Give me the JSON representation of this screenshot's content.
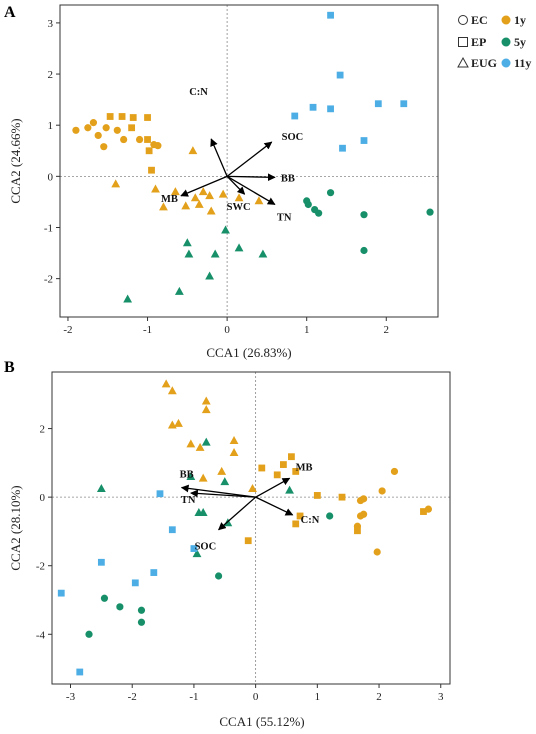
{
  "colors": {
    "1y": "#E3A01A",
    "5y": "#17906A",
    "11y": "#4DAEE5",
    "axis": "#333333",
    "refline": "#888888",
    "arrow": "#000000"
  },
  "legend": {
    "shapes": [
      {
        "label": "EC",
        "shape": "circle"
      },
      {
        "label": "EP",
        "shape": "square"
      },
      {
        "label": "EUG",
        "shape": "triangle"
      }
    ],
    "groups": [
      {
        "label": "1y",
        "color_key": "1y"
      },
      {
        "label": "5y",
        "color_key": "5y"
      },
      {
        "label": "11y",
        "color_key": "11y"
      }
    ]
  },
  "chart_data": [
    {
      "panel": "A",
      "type": "scatter",
      "xlabel": "CCA1 (26.83%)",
      "ylabel": "CCA2 (24.66%)",
      "xlim": [
        -2.1,
        2.65
      ],
      "ylim": [
        -2.75,
        3.35
      ],
      "xticks": [
        -2,
        -1,
        0,
        1,
        2
      ],
      "yticks": [
        -2,
        -1,
        0,
        1,
        2,
        3
      ],
      "points": [
        {
          "x": -1.9,
          "y": 0.9,
          "shape": "circle",
          "group": "1y"
        },
        {
          "x": -1.75,
          "y": 0.95,
          "shape": "circle",
          "group": "1y"
        },
        {
          "x": -1.68,
          "y": 1.05,
          "shape": "circle",
          "group": "1y"
        },
        {
          "x": -1.62,
          "y": 0.8,
          "shape": "circle",
          "group": "1y"
        },
        {
          "x": -1.52,
          "y": 0.95,
          "shape": "circle",
          "group": "1y"
        },
        {
          "x": -1.38,
          "y": 0.9,
          "shape": "circle",
          "group": "1y"
        },
        {
          "x": -1.3,
          "y": 0.72,
          "shape": "circle",
          "group": "1y"
        },
        {
          "x": -1.1,
          "y": 0.72,
          "shape": "circle",
          "group": "1y"
        },
        {
          "x": -1.55,
          "y": 0.58,
          "shape": "circle",
          "group": "1y"
        },
        {
          "x": -0.92,
          "y": 0.62,
          "shape": "circle",
          "group": "1y"
        },
        {
          "x": -0.87,
          "y": 0.6,
          "shape": "circle",
          "group": "1y"
        },
        {
          "x": -1.47,
          "y": 1.17,
          "shape": "square",
          "group": "1y"
        },
        {
          "x": -1.32,
          "y": 1.17,
          "shape": "square",
          "group": "1y"
        },
        {
          "x": -1.18,
          "y": 1.15,
          "shape": "square",
          "group": "1y"
        },
        {
          "x": -1.0,
          "y": 1.15,
          "shape": "square",
          "group": "1y"
        },
        {
          "x": -1.2,
          "y": 0.95,
          "shape": "square",
          "group": "1y"
        },
        {
          "x": -1.0,
          "y": 0.72,
          "shape": "square",
          "group": "1y"
        },
        {
          "x": -0.98,
          "y": 0.5,
          "shape": "square",
          "group": "1y"
        },
        {
          "x": -0.95,
          "y": 0.12,
          "shape": "square",
          "group": "1y"
        },
        {
          "x": -0.43,
          "y": 0.5,
          "shape": "triangle",
          "group": "1y"
        },
        {
          "x": -1.4,
          "y": -0.15,
          "shape": "triangle",
          "group": "1y"
        },
        {
          "x": -0.9,
          "y": -0.25,
          "shape": "triangle",
          "group": "1y"
        },
        {
          "x": -0.65,
          "y": -0.3,
          "shape": "triangle",
          "group": "1y"
        },
        {
          "x": -0.3,
          "y": -0.3,
          "shape": "triangle",
          "group": "1y"
        },
        {
          "x": -0.4,
          "y": -0.42,
          "shape": "triangle",
          "group": "1y"
        },
        {
          "x": -0.22,
          "y": -0.38,
          "shape": "triangle",
          "group": "1y"
        },
        {
          "x": -0.8,
          "y": -0.6,
          "shape": "triangle",
          "group": "1y"
        },
        {
          "x": -0.52,
          "y": -0.58,
          "shape": "triangle",
          "group": "1y"
        },
        {
          "x": -0.35,
          "y": -0.55,
          "shape": "triangle",
          "group": "1y"
        },
        {
          "x": -0.2,
          "y": -0.68,
          "shape": "triangle",
          "group": "1y"
        },
        {
          "x": -0.05,
          "y": -0.35,
          "shape": "triangle",
          "group": "1y"
        },
        {
          "x": 0.4,
          "y": -0.48,
          "shape": "triangle",
          "group": "1y"
        },
        {
          "x": 0.15,
          "y": -0.42,
          "shape": "triangle",
          "group": "1y"
        },
        {
          "x": 1.0,
          "y": -0.48,
          "shape": "circle",
          "group": "5y"
        },
        {
          "x": 1.02,
          "y": -0.55,
          "shape": "circle",
          "group": "5y"
        },
        {
          "x": 1.1,
          "y": -0.65,
          "shape": "circle",
          "group": "5y"
        },
        {
          "x": 1.15,
          "y": -0.72,
          "shape": "circle",
          "group": "5y"
        },
        {
          "x": 1.3,
          "y": -0.32,
          "shape": "circle",
          "group": "5y"
        },
        {
          "x": 1.72,
          "y": -0.75,
          "shape": "circle",
          "group": "5y"
        },
        {
          "x": 1.72,
          "y": -1.45,
          "shape": "circle",
          "group": "5y"
        },
        {
          "x": 2.55,
          "y": -0.7,
          "shape": "circle",
          "group": "5y"
        },
        {
          "x": -0.02,
          "y": -1.05,
          "shape": "triangle",
          "group": "5y"
        },
        {
          "x": -0.5,
          "y": -1.3,
          "shape": "triangle",
          "group": "5y"
        },
        {
          "x": -0.48,
          "y": -1.52,
          "shape": "triangle",
          "group": "5y"
        },
        {
          "x": -0.15,
          "y": -1.52,
          "shape": "triangle",
          "group": "5y"
        },
        {
          "x": 0.15,
          "y": -1.4,
          "shape": "triangle",
          "group": "5y"
        },
        {
          "x": 0.45,
          "y": -1.52,
          "shape": "triangle",
          "group": "5y"
        },
        {
          "x": -0.22,
          "y": -1.95,
          "shape": "triangle",
          "group": "5y"
        },
        {
          "x": -0.6,
          "y": -2.25,
          "shape": "triangle",
          "group": "5y"
        },
        {
          "x": -1.25,
          "y": -2.4,
          "shape": "triangle",
          "group": "5y"
        },
        {
          "x": 1.3,
          "y": 3.15,
          "shape": "square",
          "group": "11y"
        },
        {
          "x": 1.42,
          "y": 1.98,
          "shape": "square",
          "group": "11y"
        },
        {
          "x": 1.9,
          "y": 1.42,
          "shape": "square",
          "group": "11y"
        },
        {
          "x": 2.22,
          "y": 1.42,
          "shape": "square",
          "group": "11y"
        },
        {
          "x": 1.08,
          "y": 1.35,
          "shape": "square",
          "group": "11y"
        },
        {
          "x": 1.3,
          "y": 1.32,
          "shape": "square",
          "group": "11y"
        },
        {
          "x": 0.85,
          "y": 1.18,
          "shape": "square",
          "group": "11y"
        },
        {
          "x": 1.72,
          "y": 0.7,
          "shape": "square",
          "group": "11y"
        },
        {
          "x": 1.45,
          "y": 0.55,
          "shape": "square",
          "group": "11y"
        }
      ],
      "vectors": [
        {
          "name": "C:N",
          "x": -0.2,
          "y": 0.73
        },
        {
          "name": "SOC",
          "x": 0.56,
          "y": 0.67
        },
        {
          "name": "BB",
          "x": 0.6,
          "y": -0.02
        },
        {
          "name": "MB",
          "x": -0.58,
          "y": -0.38
        },
        {
          "name": "SWC",
          "x": 0.22,
          "y": -0.35
        },
        {
          "name": "TN",
          "x": 0.6,
          "y": -0.55
        }
      ]
    },
    {
      "panel": "B",
      "type": "scatter",
      "xlabel": "CCA1 (55.12%)",
      "ylabel": "CCA2 (28.10%)",
      "xlim": [
        -3.3,
        3.15
      ],
      "ylim": [
        -5.45,
        3.65
      ],
      "xticks": [
        -3,
        -2,
        -1,
        0,
        1,
        2,
        3
      ],
      "yticks": [
        -4,
        -2,
        0,
        2
      ],
      "points": [
        {
          "x": 2.25,
          "y": 0.75,
          "shape": "circle",
          "group": "1y"
        },
        {
          "x": 2.05,
          "y": 0.18,
          "shape": "circle",
          "group": "1y"
        },
        {
          "x": 1.75,
          "y": -0.05,
          "shape": "circle",
          "group": "1y"
        },
        {
          "x": 1.7,
          "y": -0.1,
          "shape": "circle",
          "group": "1y"
        },
        {
          "x": 1.75,
          "y": -0.5,
          "shape": "circle",
          "group": "1y"
        },
        {
          "x": 1.7,
          "y": -0.55,
          "shape": "circle",
          "group": "1y"
        },
        {
          "x": 1.65,
          "y": -0.85,
          "shape": "circle",
          "group": "1y"
        },
        {
          "x": 2.8,
          "y": -0.35,
          "shape": "circle",
          "group": "1y"
        },
        {
          "x": 1.97,
          "y": -1.6,
          "shape": "circle",
          "group": "1y"
        },
        {
          "x": 0.58,
          "y": 1.18,
          "shape": "square",
          "group": "1y"
        },
        {
          "x": 0.45,
          "y": 0.95,
          "shape": "square",
          "group": "1y"
        },
        {
          "x": 0.65,
          "y": 0.75,
          "shape": "square",
          "group": "1y"
        },
        {
          "x": 0.1,
          "y": 0.85,
          "shape": "square",
          "group": "1y"
        },
        {
          "x": 0.35,
          "y": 0.65,
          "shape": "square",
          "group": "1y"
        },
        {
          "x": 1.0,
          "y": 0.05,
          "shape": "square",
          "group": "1y"
        },
        {
          "x": 1.4,
          "y": 0.0,
          "shape": "square",
          "group": "1y"
        },
        {
          "x": 0.72,
          "y": -0.55,
          "shape": "square",
          "group": "1y"
        },
        {
          "x": 0.65,
          "y": -0.78,
          "shape": "square",
          "group": "1y"
        },
        {
          "x": 1.65,
          "y": -0.98,
          "shape": "square",
          "group": "1y"
        },
        {
          "x": 2.72,
          "y": -0.42,
          "shape": "square",
          "group": "1y"
        },
        {
          "x": -0.12,
          "y": -1.27,
          "shape": "square",
          "group": "1y"
        },
        {
          "x": -1.45,
          "y": 3.3,
          "shape": "triangle",
          "group": "1y"
        },
        {
          "x": -1.35,
          "y": 3.1,
          "shape": "triangle",
          "group": "1y"
        },
        {
          "x": -0.8,
          "y": 2.8,
          "shape": "triangle",
          "group": "1y"
        },
        {
          "x": -0.8,
          "y": 2.55,
          "shape": "triangle",
          "group": "1y"
        },
        {
          "x": -1.35,
          "y": 2.1,
          "shape": "triangle",
          "group": "1y"
        },
        {
          "x": -1.25,
          "y": 2.15,
          "shape": "triangle",
          "group": "1y"
        },
        {
          "x": -1.05,
          "y": 1.55,
          "shape": "triangle",
          "group": "1y"
        },
        {
          "x": -0.9,
          "y": 1.45,
          "shape": "triangle",
          "group": "1y"
        },
        {
          "x": -0.35,
          "y": 1.65,
          "shape": "triangle",
          "group": "1y"
        },
        {
          "x": -0.35,
          "y": 1.3,
          "shape": "triangle",
          "group": "1y"
        },
        {
          "x": -0.55,
          "y": 0.75,
          "shape": "triangle",
          "group": "1y"
        },
        {
          "x": -0.85,
          "y": 0.55,
          "shape": "triangle",
          "group": "1y"
        },
        {
          "x": -0.05,
          "y": 0.25,
          "shape": "triangle",
          "group": "1y"
        },
        {
          "x": 1.2,
          "y": -0.55,
          "shape": "circle",
          "group": "5y"
        },
        {
          "x": -0.6,
          "y": -2.3,
          "shape": "circle",
          "group": "5y"
        },
        {
          "x": -2.45,
          "y": -2.95,
          "shape": "circle",
          "group": "5y"
        },
        {
          "x": -2.2,
          "y": -3.2,
          "shape": "circle",
          "group": "5y"
        },
        {
          "x": -1.85,
          "y": -3.3,
          "shape": "circle",
          "group": "5y"
        },
        {
          "x": -1.85,
          "y": -3.65,
          "shape": "circle",
          "group": "5y"
        },
        {
          "x": -2.7,
          "y": -4.0,
          "shape": "circle",
          "group": "5y"
        },
        {
          "x": -0.8,
          "y": 1.6,
          "shape": "triangle",
          "group": "5y"
        },
        {
          "x": -1.05,
          "y": 0.6,
          "shape": "triangle",
          "group": "5y"
        },
        {
          "x": -0.5,
          "y": 0.45,
          "shape": "triangle",
          "group": "5y"
        },
        {
          "x": 0.55,
          "y": 0.2,
          "shape": "triangle",
          "group": "5y"
        },
        {
          "x": -2.5,
          "y": 0.25,
          "shape": "triangle",
          "group": "5y"
        },
        {
          "x": -0.92,
          "y": -0.45,
          "shape": "triangle",
          "group": "5y"
        },
        {
          "x": -0.85,
          "y": -0.45,
          "shape": "triangle",
          "group": "5y"
        },
        {
          "x": -0.45,
          "y": -0.75,
          "shape": "triangle",
          "group": "5y"
        },
        {
          "x": -0.95,
          "y": -1.65,
          "shape": "triangle",
          "group": "5y"
        },
        {
          "x": -1.55,
          "y": 0.1,
          "shape": "square",
          "group": "11y"
        },
        {
          "x": -1.35,
          "y": -0.95,
          "shape": "square",
          "group": "11y"
        },
        {
          "x": -1.0,
          "y": -1.5,
          "shape": "square",
          "group": "11y"
        },
        {
          "x": -2.5,
          "y": -1.9,
          "shape": "square",
          "group": "11y"
        },
        {
          "x": -1.65,
          "y": -2.2,
          "shape": "square",
          "group": "11y"
        },
        {
          "x": -1.95,
          "y": -2.5,
          "shape": "square",
          "group": "11y"
        },
        {
          "x": -3.15,
          "y": -2.8,
          "shape": "square",
          "group": "11y"
        },
        {
          "x": -2.85,
          "y": -5.1,
          "shape": "square",
          "group": "11y"
        }
      ],
      "vectors": [
        {
          "name": "BB",
          "x": -1.2,
          "y": 0.28
        },
        {
          "name": "TN",
          "x": -1.05,
          "y": 0.12
        },
        {
          "name": "SOC",
          "x": -0.6,
          "y": -0.95
        },
        {
          "name": "MB",
          "x": 0.55,
          "y": 0.55
        },
        {
          "name": "C:N",
          "x": 0.6,
          "y": -0.52
        }
      ]
    }
  ]
}
